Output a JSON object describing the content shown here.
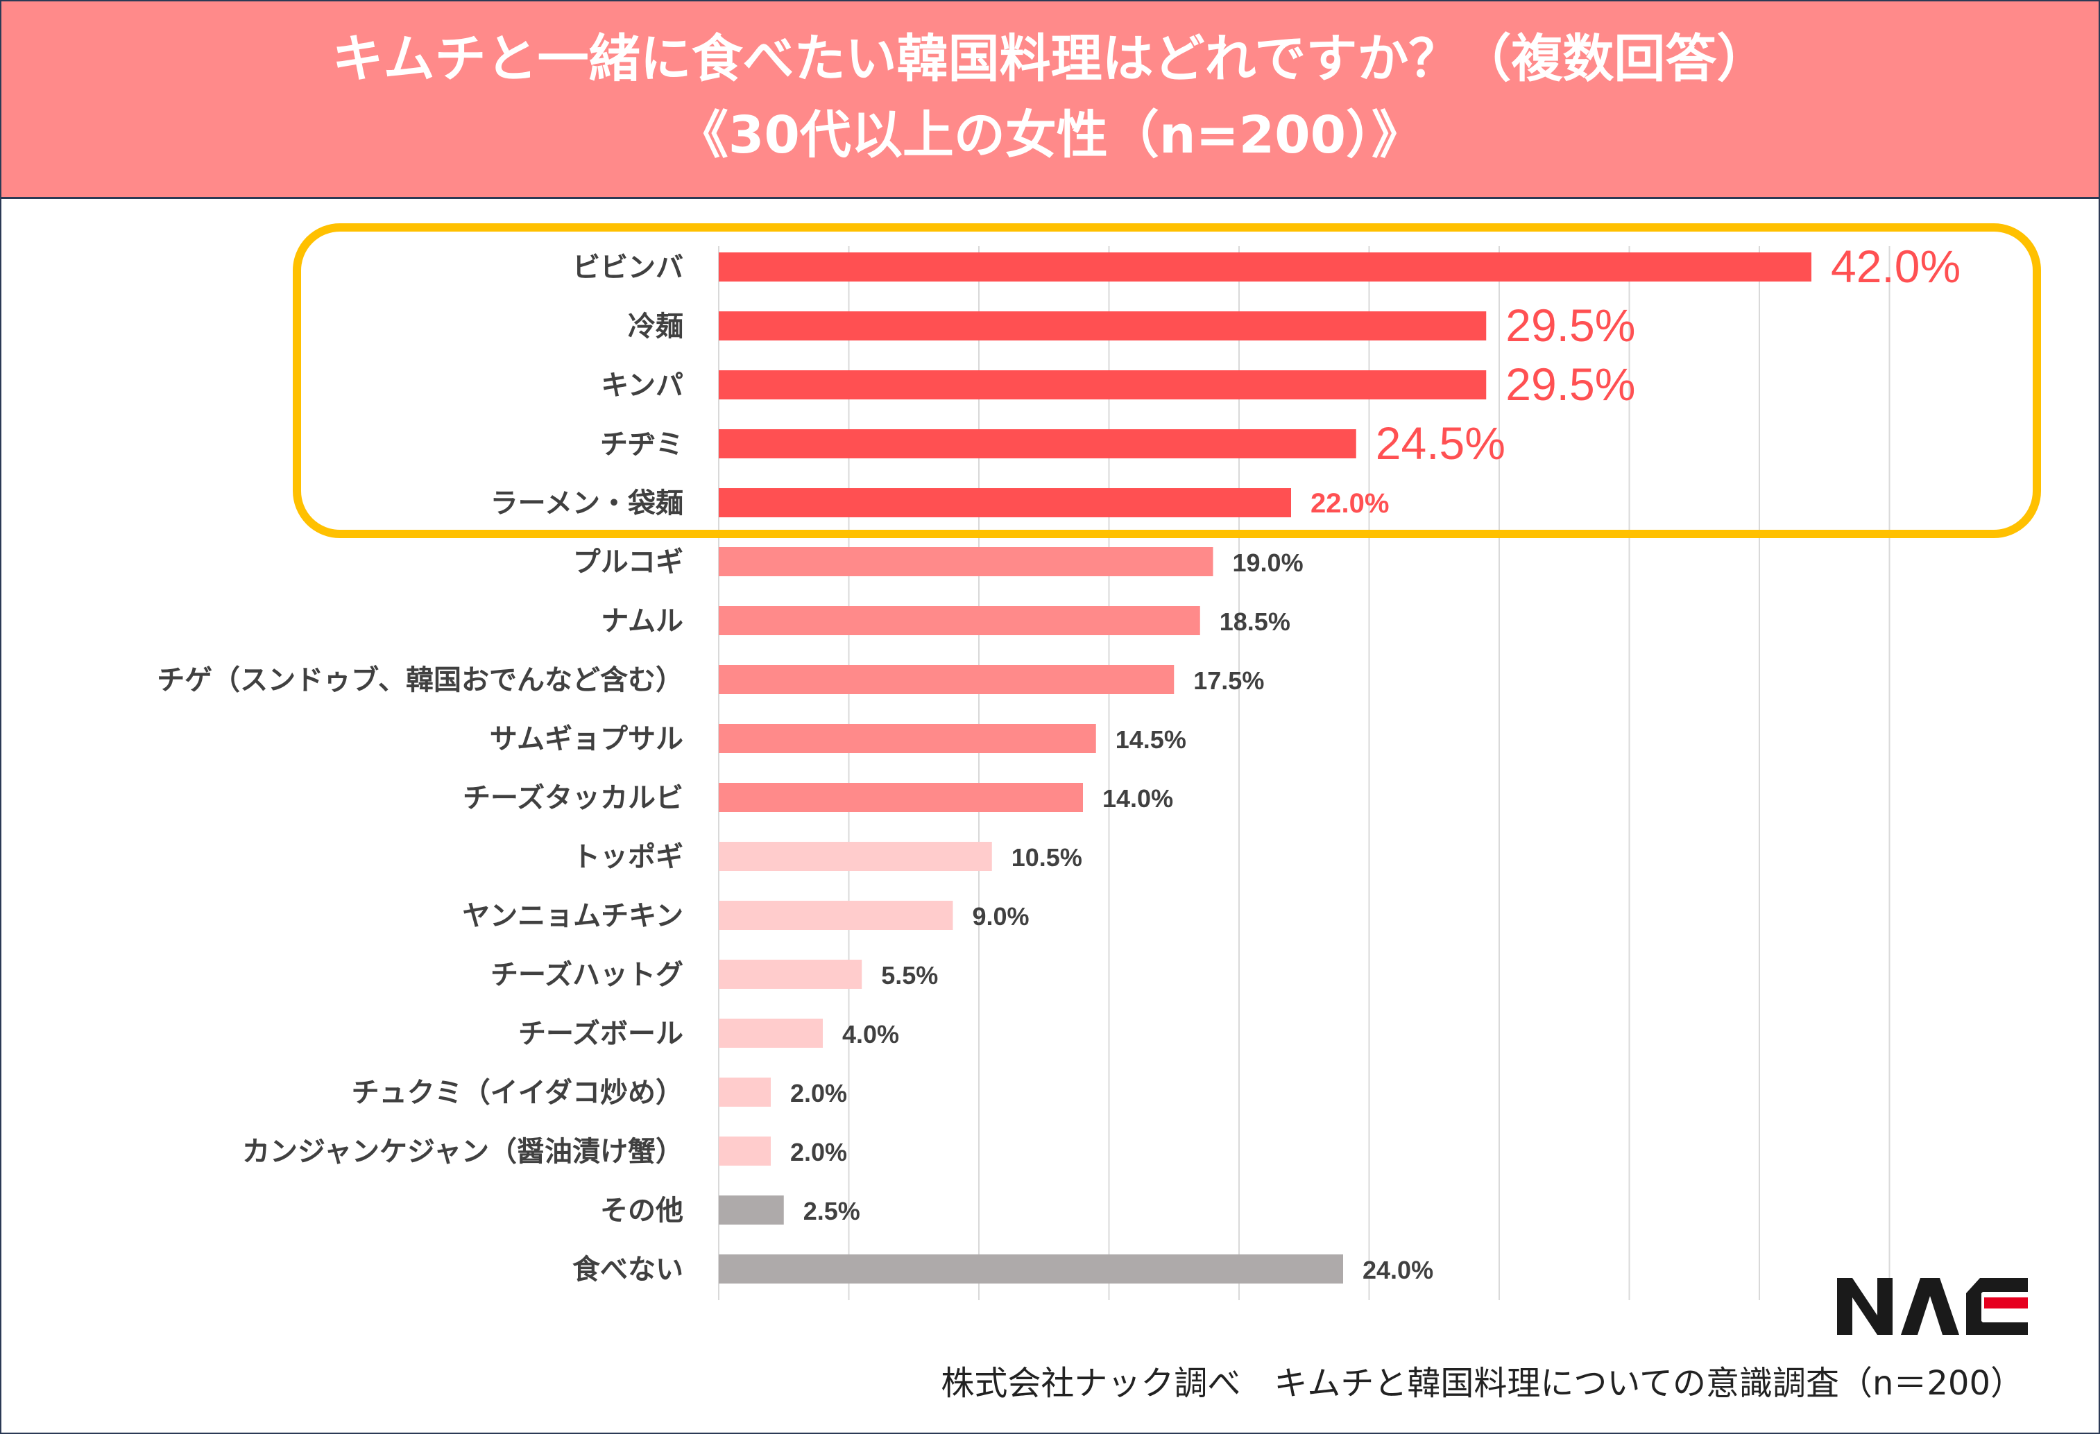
{
  "title": {
    "line1": "キムチと一緒に食べたい韓国料理はどれですか？（複数回答）",
    "line2": "《30代以上の女性（n=200）》"
  },
  "footer": "株式会社ナック調べ　キムチと韓国料理についての意識調査（n＝200）",
  "logo": {
    "text": "NAC",
    "colors": {
      "main": "#1a1a1a",
      "accent": "#e6001f"
    }
  },
  "colors": {
    "header_bg": "#ff8a8a",
    "top5": "#ff5052",
    "mid": "#ff8a8a",
    "light": "#ffcccc",
    "gray": "#aeaaaa",
    "highlight_box": "#ffc000",
    "top_label": "#ff5052"
  },
  "chart_data": {
    "type": "bar",
    "orientation": "horizontal",
    "categories": [
      "ビビンバ",
      "冷麺",
      "キンパ",
      "チヂミ",
      "ラーメン・袋麺",
      "プルコギ",
      "ナムル",
      "チゲ（スンドゥブ、韓国おでんなど含む）",
      "サムギョプサル",
      "チーズタッカルビ",
      "トッポギ",
      "ヤンニョムチキン",
      "チーズハットグ",
      "チーズボール",
      "チュクミ（イイダコ炒め）",
      "カンジャンケジャン（醤油漬け蟹）",
      "その他",
      "食べない"
    ],
    "values": [
      42.0,
      29.5,
      29.5,
      24.5,
      22.0,
      19.0,
      18.5,
      17.5,
      14.5,
      14.0,
      10.5,
      9.0,
      5.5,
      4.0,
      2.0,
      2.0,
      2.5,
      24.0
    ],
    "labels": [
      "42.0%",
      "29.5%",
      "29.5%",
      "24.5%",
      "22.0%",
      "19.0%",
      "18.5%",
      "17.5%",
      "14.5%",
      "14.0%",
      "10.5%",
      "9.0%",
      "5.5%",
      "4.0%",
      "2.0%",
      "2.0%",
      "2.5%",
      "24.0%"
    ],
    "bar_groups": [
      "top5",
      "top5",
      "top5",
      "top5",
      "top5",
      "mid",
      "mid",
      "mid",
      "mid",
      "mid",
      "light",
      "light",
      "light",
      "light",
      "light",
      "light",
      "gray",
      "gray"
    ],
    "xlim": [
      0,
      45
    ],
    "gridlines_every": 5,
    "grid": true,
    "highlight": "top 5 items boxed"
  }
}
